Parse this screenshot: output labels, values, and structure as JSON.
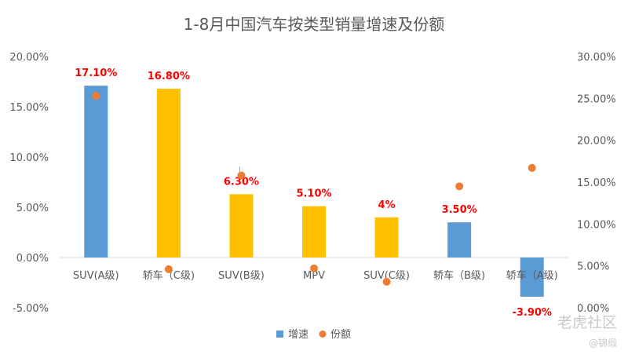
{
  "chart_data": {
    "type": "bar+scatter",
    "title": "1-8月中国汽车按类型销量增速及份额",
    "categories": [
      "SUV(A级)",
      "轿车（C级)",
      "SUV(B级)",
      "MPV",
      "SUV(C级)",
      "轿车（B级)",
      "轿车（A级)"
    ],
    "series": [
      {
        "name": "增速",
        "kind": "bar",
        "axis": "left",
        "values": [
          17.1,
          16.8,
          6.3,
          5.1,
          4.0,
          3.5,
          -3.9
        ],
        "data_labels": [
          "17.10%",
          "16.80%",
          "6.30%",
          "5.10%",
          "4%",
          "3.50%",
          "-3.90%"
        ],
        "bar_colors": [
          "#5b9bd5",
          "#ffc000",
          "#ffc000",
          "#ffc000",
          "#ffc000",
          "#5b9bd5",
          "#5b9bd5"
        ]
      },
      {
        "name": "份额",
        "kind": "scatter",
        "axis": "right",
        "values": [
          25.3,
          4.6,
          15.8,
          4.7,
          3.1,
          14.5,
          16.7
        ],
        "color": "#ed7d31"
      }
    ],
    "y_left": {
      "min": -5,
      "max": 20,
      "step": 5,
      "tick_labels": [
        "-5.00%",
        "0.00%",
        "5.00%",
        "10.00%",
        "15.00%",
        "20.00%"
      ]
    },
    "y_right": {
      "min": 0,
      "max": 30,
      "step": 5,
      "tick_labels": [
        "0.00%",
        "5.00%",
        "10.00%",
        "15.00%",
        "20.00%",
        "25.00%",
        "30.00%"
      ]
    },
    "data_label_color": "#ff0000",
    "grid": false,
    "legend": "bottom"
  },
  "watermark": {
    "main": "老虎社区",
    "user": "@锦缎"
  }
}
